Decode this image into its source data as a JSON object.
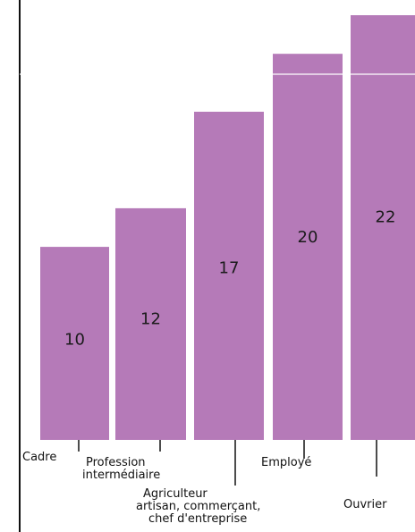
{
  "chart_data": {
    "type": "bar",
    "categories": [
      [
        "Cadre"
      ],
      [
        "Profession",
        "intermédiaire"
      ],
      [
        "Agriculteur",
        "artisan, commerçant,",
        "chef d'entreprise"
      ],
      [
        "Employé"
      ],
      [
        "Ouvrier"
      ]
    ],
    "values": [
      10,
      12,
      17,
      20,
      22
    ],
    "ylim": [
      0,
      22
    ],
    "grid": true,
    "bar_color": "#b57ab8",
    "title": "",
    "xlabel": "",
    "ylabel": ""
  }
}
